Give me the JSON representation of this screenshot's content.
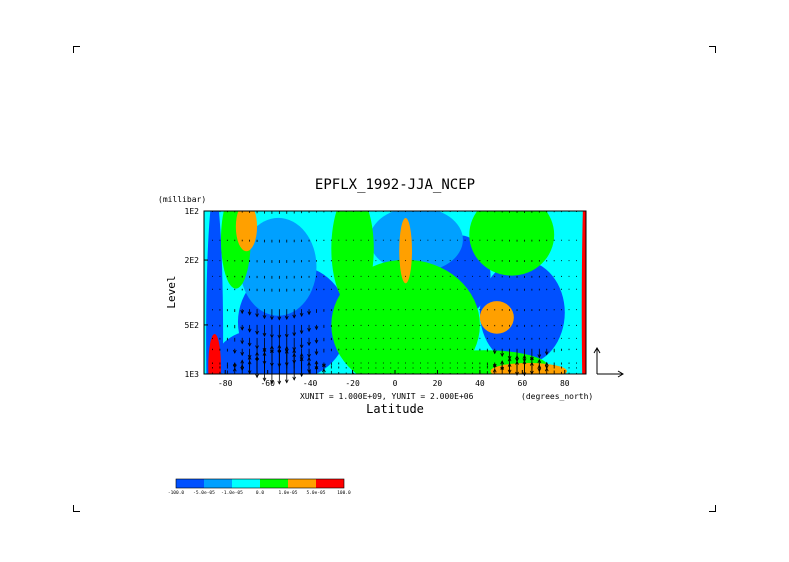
{
  "chart_data": {
    "type": "heatmap",
    "title": "EPFLX_1992-JJA_NCEP",
    "xlabel": "Latitude",
    "ylabel": "Level",
    "y_units": "(millibar)",
    "x_units": "(degrees_north)",
    "xlim": [
      -90,
      90
    ],
    "ylim_mb": [
      1000,
      100
    ],
    "y_scale": "log",
    "x_ticks": [
      -80,
      -60,
      -40,
      -20,
      0,
      20,
      40,
      60,
      80
    ],
    "x_tick_labels": [
      "-80",
      "-60",
      "-40",
      "-20",
      "0",
      "20",
      "40",
      "60",
      "80"
    ],
    "y_ticks": [
      1000,
      500,
      200,
      100
    ],
    "y_tick_labels": [
      "1E3",
      "5E2",
      "2E2",
      "1E2"
    ],
    "vector_units": "XUNIT = 1.000E+09, YUNIT = 2.000E+06",
    "vector_rows_mb": [
      1000,
      925,
      850,
      700,
      600,
      500,
      400,
      300,
      250,
      200,
      150,
      100
    ],
    "colorbar": {
      "levels": [
        -100.0,
        -5e-05,
        -1e-05,
        0.0,
        1e-05,
        5e-05,
        100.0
      ],
      "labels": [
        "-100.0",
        "-5.0e-05",
        "-1.0e-05",
        "0.0",
        "1.0e-05",
        "5.0e-05",
        "100.0"
      ],
      "colors": [
        "#0050ff",
        "#00a0ff",
        "#00ffff",
        "#00ff00",
        "#ffa000",
        "#ff0000"
      ]
    },
    "field_background": "#00ffff",
    "field_blobs": [
      {
        "lat": -85,
        "p": 600,
        "rx": 4,
        "rp": 0.9,
        "level": 0
      },
      {
        "lat": -48,
        "p": 480,
        "rx": 26,
        "rp": 0.35,
        "level": 0
      },
      {
        "lat": -62,
        "p": 800,
        "rx": 22,
        "rp": 0.18,
        "level": 0
      },
      {
        "lat": 60,
        "p": 420,
        "rx": 20,
        "rp": 0.32,
        "level": 0
      },
      {
        "lat": 30,
        "p": 250,
        "rx": 15,
        "rp": 0.25,
        "level": 0
      },
      {
        "lat": 10,
        "p": 150,
        "rx": 22,
        "rp": 0.2,
        "level": 1
      },
      {
        "lat": -55,
        "p": 220,
        "rx": 18,
        "rp": 0.3,
        "level": 1
      },
      {
        "lat": 5,
        "p": 500,
        "rx": 35,
        "rp": 0.4,
        "level": 3
      },
      {
        "lat": 42,
        "p": 900,
        "rx": 30,
        "rp": 0.1,
        "level": 3
      },
      {
        "lat": -20,
        "p": 170,
        "rx": 10,
        "rp": 0.35,
        "level": 3
      },
      {
        "lat": 55,
        "p": 140,
        "rx": 20,
        "rp": 0.25,
        "level": 3
      },
      {
        "lat": -75,
        "p": 150,
        "rx": 7,
        "rp": 0.3,
        "level": 3
      },
      {
        "lat": -70,
        "p": 125,
        "rx": 5,
        "rp": 0.15,
        "level": 4
      },
      {
        "lat": 5,
        "p": 175,
        "rx": 3,
        "rp": 0.2,
        "level": 4
      },
      {
        "lat": 48,
        "p": 450,
        "rx": 8,
        "rp": 0.1,
        "level": 4
      },
      {
        "lat": 63,
        "p": 960,
        "rx": 18,
        "rp": 0.05,
        "level": 4
      },
      {
        "lat": -85,
        "p": 900,
        "rx": 3,
        "rp": 0.2,
        "level": 5
      },
      {
        "lat": 90,
        "p": 400,
        "rx": 2,
        "rp": 0.9,
        "level": 5
      }
    ],
    "legend": "bottom-left"
  }
}
